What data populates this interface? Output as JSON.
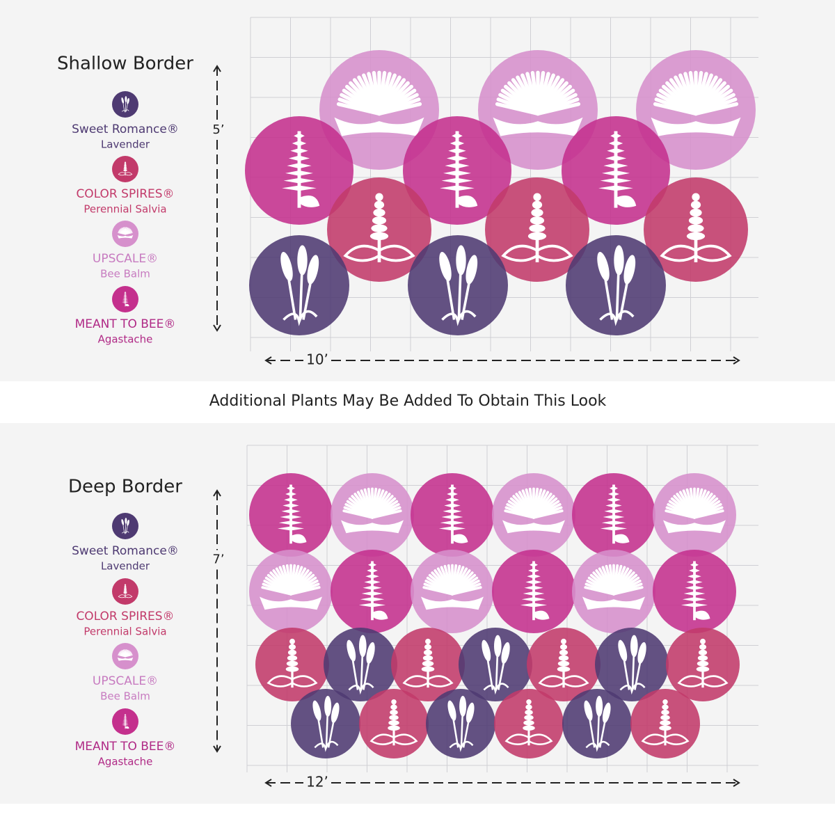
{
  "shallow_border": {
    "title": "Shallow Border",
    "legend": [
      {
        "name": "Sweet Romance®",
        "sub": "Lavender"
      },
      {
        "name": "COLOR SPIRES®",
        "sub": "Perennial Salvia"
      },
      {
        "name": "UPSCALE®",
        "sub": "Bee Balm"
      },
      {
        "name": "MEANT TO BEE®",
        "sub": "Agastache"
      }
    ],
    "height_label": "5’",
    "width_label": "10’"
  },
  "note": "Additional Plants May Be Added To Obtain This Look",
  "deep_border": {
    "title": "Deep Border",
    "legend": [
      {
        "name": "Sweet Romance®",
        "sub": "Lavender"
      },
      {
        "name": "COLOR SPIRES®",
        "sub": "Perennial Salvia"
      },
      {
        "name": "UPSCALE®",
        "sub": "Bee Balm"
      },
      {
        "name": "MEANT TO BEE®",
        "sub": "Agastache"
      }
    ],
    "height_label": "7’",
    "width_label": "12’"
  }
}
